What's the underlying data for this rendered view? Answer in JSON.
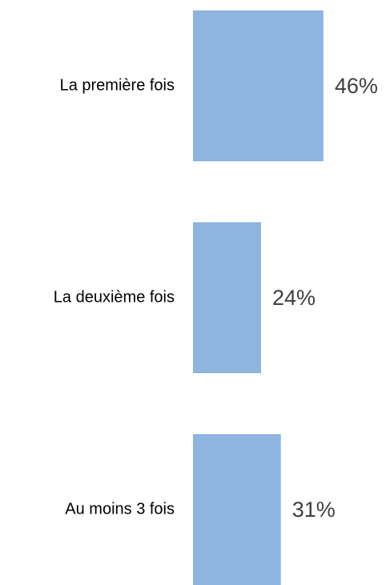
{
  "chart_data": {
    "type": "barh",
    "categories": [
      "La première fois",
      "La deuxième fois",
      "Au moins 3 fois"
    ],
    "values": [
      46,
      24,
      31
    ],
    "value_labels": [
      "46%",
      "24%",
      "31%"
    ],
    "color": "#8eb4e0"
  }
}
